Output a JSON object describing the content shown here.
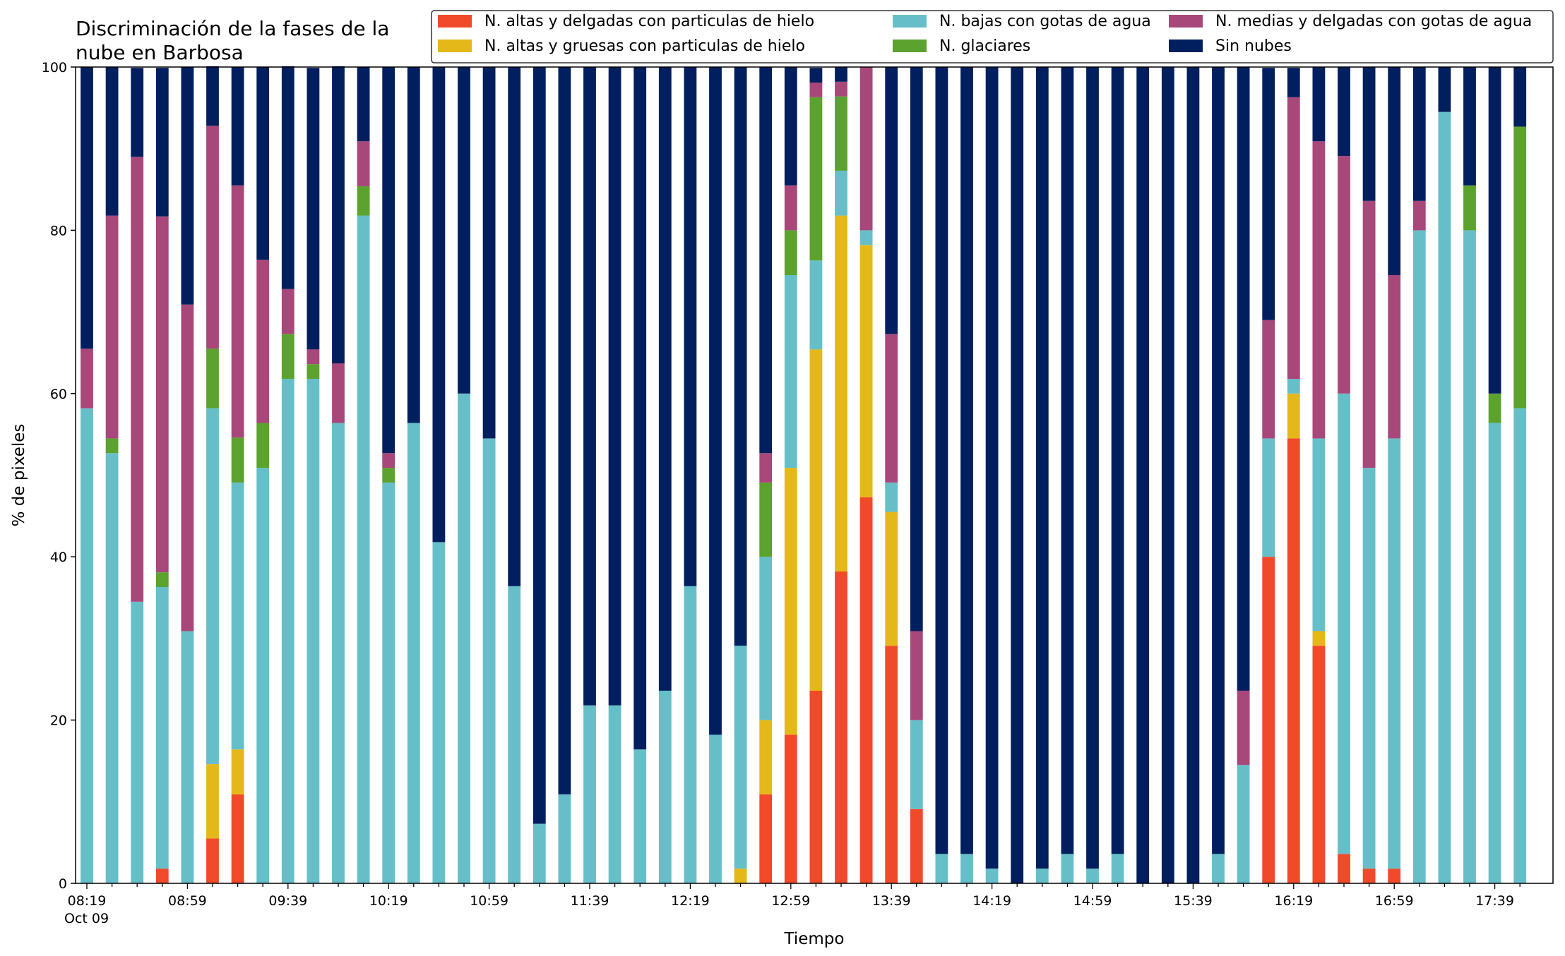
{
  "chart_data": {
    "type": "bar",
    "stacked": true,
    "title": "Discriminación de la fases de la nube en Barbosa",
    "title_lines": [
      "Discriminación de la fases de la",
      "nube en Barbosa"
    ],
    "xlabel": "Tiempo",
    "ylabel": "% de pixeles",
    "ylim": [
      0,
      100
    ],
    "yticks": [
      0,
      20,
      40,
      60,
      80,
      100
    ],
    "date_label": "Oct 09",
    "xtick_labels": [
      "08:19",
      "08:59",
      "09:39",
      "10:19",
      "10:59",
      "11:39",
      "12:19",
      "12:59",
      "13:39",
      "14:19",
      "14:59",
      "15:39",
      "16:19",
      "16:59",
      "17:39"
    ],
    "categories": [
      "08:19",
      "08:29",
      "08:39",
      "08:49",
      "08:59",
      "09:09",
      "09:19",
      "09:29",
      "09:39",
      "09:49",
      "09:59",
      "10:09",
      "10:19",
      "10:29",
      "10:39",
      "10:49",
      "10:59",
      "11:09",
      "11:19",
      "11:29",
      "11:39",
      "11:49",
      "11:59",
      "12:09",
      "12:19",
      "12:29",
      "12:39",
      "12:49",
      "12:59",
      "13:09",
      "13:19",
      "13:29",
      "13:39",
      "13:49",
      "13:59",
      "14:09",
      "14:19",
      "14:29",
      "14:39",
      "14:49",
      "14:59",
      "15:09",
      "15:19",
      "15:29",
      "15:39",
      "15:49",
      "15:59",
      "16:09",
      "16:19",
      "16:29",
      "16:39",
      "16:49",
      "16:59",
      "17:09",
      "17:19",
      "17:29",
      "17:39",
      "17:49"
    ],
    "legend": {
      "placement": "top-right",
      "columns": 3
    },
    "grid": false,
    "series": [
      {
        "name": "N. altas y delgadas con particulas de hielo",
        "color": "#f04a2a",
        "values": [
          0,
          0,
          0,
          1.8,
          0,
          5.5,
          10.9,
          0,
          0,
          0,
          0,
          0,
          0,
          0,
          0,
          0,
          0,
          0,
          0,
          0,
          0,
          0,
          0,
          0,
          0,
          0,
          0,
          10.9,
          18.2,
          23.6,
          38.2,
          47.3,
          29.1,
          9.1,
          0,
          0,
          0,
          0,
          0,
          0,
          0,
          0,
          0,
          0,
          0,
          0,
          0,
          40,
          54.5,
          29.1,
          3.6,
          1.8,
          1.8,
          0,
          0,
          0,
          0,
          0
        ]
      },
      {
        "name": "N. altas y gruesas con particulas de hielo",
        "color": "#e5b81a",
        "values": [
          0,
          0,
          0,
          0,
          0,
          9.1,
          5.5,
          0,
          0,
          0,
          0,
          0,
          0,
          0,
          0,
          0,
          0,
          0,
          0,
          0,
          0,
          0,
          0,
          0,
          0,
          0,
          1.8,
          9.1,
          32.7,
          41.8,
          43.6,
          30.9,
          16.4,
          0,
          0,
          0,
          0,
          0,
          0,
          0,
          0,
          0,
          0,
          0,
          0,
          0,
          0,
          0,
          5.5,
          1.8,
          0,
          0,
          0,
          0,
          0,
          0,
          0,
          0
        ]
      },
      {
        "name": "N. bajas con gotas de agua",
        "color": "#66bfc8",
        "values": [
          58.2,
          52.7,
          34.5,
          34.5,
          30.9,
          43.6,
          32.7,
          50.9,
          61.8,
          61.8,
          56.4,
          81.8,
          49.1,
          56.4,
          41.8,
          60,
          54.5,
          36.4,
          7.3,
          10.9,
          21.8,
          21.8,
          16.4,
          23.6,
          36.4,
          18.2,
          27.3,
          20,
          23.6,
          10.9,
          5.5,
          1.8,
          3.6,
          10.9,
          3.6,
          3.6,
          1.8,
          0,
          1.8,
          3.6,
          1.8,
          3.6,
          0,
          0,
          0,
          3.6,
          14.5,
          14.5,
          1.8,
          23.6,
          56.4,
          49.1,
          52.7,
          80,
          94.5,
          80,
          56.4,
          58.2
        ]
      },
      {
        "name": "N. glaciares",
        "color": "#5ba22e",
        "values": [
          0,
          1.8,
          0,
          1.8,
          0,
          7.3,
          5.5,
          5.5,
          5.5,
          1.8,
          0,
          3.6,
          1.8,
          0,
          0,
          0,
          0,
          0,
          0,
          0,
          0,
          0,
          0,
          0,
          0,
          0,
          0,
          9.1,
          5.5,
          20,
          9.1,
          0,
          0,
          0,
          0,
          0,
          0,
          0,
          0,
          0,
          0,
          0,
          0,
          0,
          0,
          0,
          0,
          0,
          0,
          0,
          0,
          0,
          0,
          0,
          0,
          5.5,
          3.6,
          34.5
        ]
      },
      {
        "name": "N. medias y delgadas con gotas de agua",
        "color": "#a8477a",
        "values": [
          7.3,
          27.3,
          54.5,
          43.6,
          40,
          27.3,
          30.9,
          20,
          5.5,
          1.8,
          7.3,
          5.5,
          1.8,
          0,
          0,
          0,
          0,
          0,
          0,
          0,
          0,
          0,
          0,
          0,
          0,
          0,
          0,
          3.6,
          5.5,
          1.8,
          1.8,
          20,
          18.2,
          10.9,
          0,
          0,
          0,
          0,
          0,
          0,
          0,
          0,
          0,
          0,
          0,
          0,
          9.1,
          14.5,
          34.5,
          36.4,
          29.1,
          32.7,
          20,
          3.6,
          0,
          0,
          0,
          0
        ]
      },
      {
        "name": "Sin nubes",
        "color": "#011f5e",
        "values": [
          34.5,
          18.2,
          10.9,
          18.2,
          29.1,
          7.3,
          14.5,
          23.6,
          27.3,
          34.5,
          36.4,
          9.1,
          47.3,
          43.6,
          58.2,
          40,
          45.5,
          63.6,
          92.7,
          89.1,
          78.2,
          78.2,
          83.6,
          76.4,
          63.6,
          81.8,
          70.9,
          47.3,
          14.5,
          1.8,
          1.8,
          0,
          32.7,
          69.1,
          96.4,
          96.4,
          98.2,
          100,
          98.2,
          96.4,
          98.2,
          96.4,
          100,
          100,
          100,
          96.4,
          76.4,
          30.9,
          3.6,
          9.1,
          10.9,
          16.4,
          25.5,
          16.4,
          5.5,
          14.5,
          40,
          7.3
        ]
      }
    ]
  }
}
